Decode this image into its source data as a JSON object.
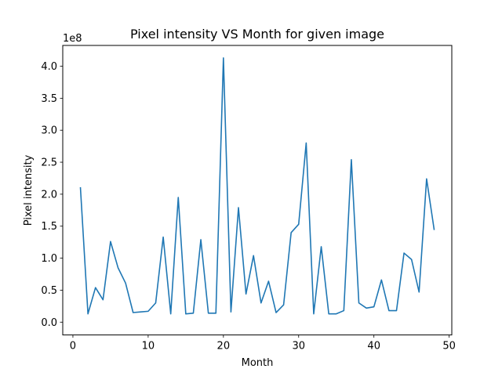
{
  "chart_data": {
    "type": "line",
    "title": "Pixel intensity VS Month for given image",
    "xlabel": "Month",
    "ylabel": "Pixel intensity",
    "y_scale_label": "1e8",
    "xlim": [
      -1.35,
      50.35
    ],
    "ylim": [
      -0.2,
      4.325
    ],
    "x_ticks": [
      0,
      10,
      20,
      30,
      40,
      50
    ],
    "x_tick_labels": [
      "0",
      "10",
      "20",
      "30",
      "40",
      "50"
    ],
    "y_ticks": [
      0.0,
      0.5,
      1.0,
      1.5,
      2.0,
      2.5,
      3.0,
      3.5,
      4.0
    ],
    "y_tick_labels": [
      "0.0",
      "0.5",
      "1.0",
      "1.5",
      "2.0",
      "2.5",
      "3.0",
      "3.5",
      "4.0"
    ],
    "grid": false,
    "legend": "none",
    "line_color": "#1f77b4",
    "series": [
      {
        "x": [
          1,
          2,
          3,
          4,
          5,
          6,
          7,
          8,
          9,
          10,
          11,
          12,
          13,
          14,
          15,
          16,
          17,
          18,
          19,
          20,
          21,
          22,
          23,
          24,
          25,
          26,
          27,
          28,
          29,
          30,
          31,
          32,
          33,
          34,
          35,
          36,
          37,
          38,
          39,
          40,
          41,
          42,
          43,
          44,
          45,
          46,
          47,
          48
        ],
        "values": [
          2.1,
          0.13,
          0.54,
          0.35,
          1.26,
          0.85,
          0.61,
          0.15,
          0.16,
          0.17,
          0.3,
          1.33,
          0.13,
          1.95,
          0.13,
          0.14,
          1.29,
          0.14,
          0.14,
          4.13,
          0.16,
          1.79,
          0.44,
          1.04,
          0.3,
          0.64,
          0.15,
          0.27,
          1.4,
          1.53,
          2.8,
          0.13,
          1.18,
          0.13,
          0.13,
          0.18,
          2.54,
          0.3,
          0.22,
          0.24,
          0.66,
          0.18,
          0.18,
          1.08,
          0.98,
          0.47,
          2.24,
          1.45
        ]
      }
    ]
  }
}
